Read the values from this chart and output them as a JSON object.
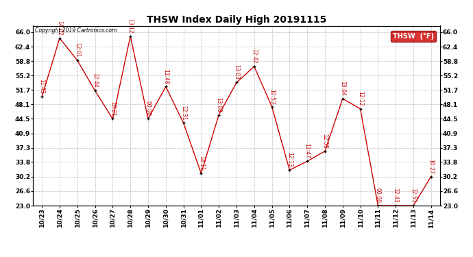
{
  "title": "THSW Index Daily High 20191115",
  "copyright": "Copyright 2019 Cartronics.com",
  "legend_text": "THSW  (°F)",
  "background_color": "#ffffff",
  "line_color": "#cc0000",
  "marker_color": "#000000",
  "legend_bg": "#cc0000",
  "ylim_min": 23.0,
  "ylim_max": 67.6,
  "yticks": [
    23.0,
    26.6,
    30.2,
    33.8,
    37.3,
    40.9,
    44.5,
    48.1,
    51.7,
    55.2,
    58.8,
    62.4,
    66.0
  ],
  "dates": [
    "10/23",
    "10/24",
    "10/25",
    "10/26",
    "10/27",
    "10/28",
    "10/29",
    "10/30",
    "10/31",
    "11/01",
    "11/02",
    "11/03",
    "11/04",
    "11/05",
    "11/06",
    "11/07",
    "11/08",
    "11/09",
    "11/10",
    "11/11",
    "11/12",
    "11/13",
    "11/14"
  ],
  "values": [
    50.0,
    64.5,
    59.0,
    51.5,
    44.5,
    65.0,
    44.5,
    52.5,
    43.5,
    31.0,
    45.5,
    53.5,
    57.5,
    47.5,
    31.8,
    34.0,
    36.5,
    49.5,
    47.0,
    23.0,
    23.0,
    23.0,
    30.2
  ],
  "time_labels": [
    "11:43",
    "14:02",
    "12:01",
    "12:44",
    "10:21",
    "13:12",
    "00:00",
    "11:48",
    "12:31",
    "14:11",
    "13:08",
    "13:03",
    "12:42",
    "10:53",
    "12:13",
    "11:47",
    "12:55",
    "13:04",
    "12:12",
    "00:00",
    "12:43",
    "12:51",
    "10:27"
  ]
}
